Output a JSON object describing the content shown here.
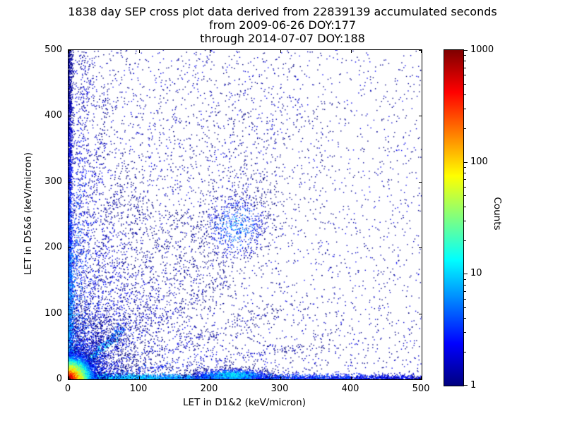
{
  "figure": {
    "background": "#ffffff",
    "axis_color": "#000000"
  },
  "chart_data": {
    "type": "scatter",
    "title_lines": [
      "1838 day SEP cross plot data derived from 22839139 accumulated seconds",
      "from 2009-06-26 DOY:177",
      "through 2014-07-07 DOY:188"
    ],
    "xlabel": "LET in D1&2 (keV/micron)",
    "ylabel": "LET in D5&6 (keV/micron)",
    "xlim": [
      0,
      500
    ],
    "ylim": [
      0,
      500
    ],
    "xticks": [
      0,
      100,
      200,
      300,
      400,
      500
    ],
    "yticks": [
      0,
      100,
      200,
      300,
      400,
      500
    ],
    "grid": false,
    "legend": "none",
    "point_base_color": "#00008f",
    "colorbar": {
      "label": "Counts",
      "scale": "log",
      "min": 1,
      "max": 1000,
      "ticks": [
        1,
        10,
        100,
        1000
      ],
      "colormap": "jet",
      "stops": [
        [
          0.0,
          "#00007f"
        ],
        [
          0.125,
          "#0000ff"
        ],
        [
          0.375,
          "#00ffff"
        ],
        [
          0.625,
          "#ffff00"
        ],
        [
          0.875,
          "#ff0000"
        ],
        [
          1.0,
          "#7f0000"
        ]
      ]
    },
    "seed": 1838,
    "clusters": [
      {
        "name": "background-sparse",
        "kind": "bg",
        "n": 1500,
        "xmax": 500,
        "ymax": 500,
        "xpow": 1.0,
        "ypow": 1.0,
        "peak": 1
      },
      {
        "name": "background-left-weighted",
        "kind": "bg",
        "n": 3400,
        "xmax": 500,
        "ymax": 500,
        "xpow": 2.3,
        "ypow": 1.5,
        "peak": 1.4
      },
      {
        "name": "upper-mid-diffuse-1",
        "kind": "blob",
        "n": 170,
        "cx": 135,
        "cy": 330,
        "sx": 48,
        "sy": 75,
        "peak": 1.6
      },
      {
        "name": "upper-mid-diffuse-2",
        "kind": "blob",
        "n": 170,
        "cx": 290,
        "cy": 415,
        "sx": 45,
        "sy": 60,
        "peak": 1.6
      },
      {
        "name": "mid-diffuse",
        "kind": "blob",
        "n": 160,
        "cx": 225,
        "cy": 330,
        "sx": 55,
        "sy": 50,
        "peak": 1.6
      },
      {
        "name": "left-band",
        "kind": "band-left",
        "n": 2200,
        "sigma": 3,
        "ymax": 500,
        "ypow": 1.2,
        "peak": 10
      },
      {
        "name": "bottom-band",
        "kind": "band-bottom",
        "n": 3800,
        "sigma": 3.5,
        "xmax": 500,
        "xpow": 1.7,
        "peak": 12
      },
      {
        "name": "bottom-bump",
        "kind": "blob",
        "n": 1400,
        "cx": 232,
        "cy": 6,
        "sx": 27,
        "sy": 5,
        "peak": 10
      },
      {
        "name": "streak-87",
        "kind": "streak",
        "n": 650,
        "angle": 87,
        "len": 500,
        "sigma": 5,
        "peak": 8,
        "spow": 1.6
      },
      {
        "name": "streak-83",
        "kind": "streak",
        "n": 520,
        "angle": 83,
        "len": 430,
        "sigma": 7,
        "peak": 6,
        "spow": 1.5
      },
      {
        "name": "streak-76",
        "kind": "streak",
        "n": 450,
        "angle": 76,
        "len": 340,
        "sigma": 8,
        "peak": 5,
        "spow": 1.4
      },
      {
        "name": "streak-68",
        "kind": "streak",
        "n": 380,
        "angle": 68,
        "len": 300,
        "sigma": 9,
        "peak": 5,
        "spow": 1.4
      },
      {
        "name": "streak-58",
        "kind": "streak",
        "n": 350,
        "angle": 58,
        "len": 300,
        "sigma": 10,
        "peak": 4,
        "spow": 1.4
      },
      {
        "name": "diagonal-bright",
        "kind": "streak",
        "n": 520,
        "angle": 45,
        "len": 110,
        "sigma": 3.5,
        "peak": 30,
        "spow": 1.2
      },
      {
        "name": "diagonal-diffuse",
        "kind": "streak",
        "n": 700,
        "angle": 47,
        "len": 420,
        "sigma": 24,
        "peak": 3,
        "spow": 1.3
      },
      {
        "name": "streak-34",
        "kind": "streak",
        "n": 300,
        "angle": 34,
        "len": 280,
        "sigma": 9,
        "peak": 4,
        "spow": 1.4
      },
      {
        "name": "streak-19",
        "kind": "streak",
        "n": 280,
        "angle": 19,
        "len": 320,
        "sigma": 8,
        "peak": 4,
        "spow": 1.4
      },
      {
        "name": "streak-8",
        "kind": "streak",
        "n": 300,
        "angle": 8,
        "len": 380,
        "sigma": 6,
        "peak": 5,
        "spow": 1.4
      },
      {
        "name": "center-blob",
        "kind": "blob",
        "n": 650,
        "cx": 237,
        "cy": 232,
        "sx": 26,
        "sy": 30,
        "peak": 5
      },
      {
        "name": "origin-halo",
        "kind": "radial",
        "n": 2600,
        "cx": 0,
        "cy": 0,
        "scale": 60,
        "cdecay": 28,
        "peak": 15
      },
      {
        "name": "origin-core",
        "kind": "radial",
        "n": 9000,
        "cx": 0,
        "cy": 0,
        "scale": 11,
        "cdecay": 6.5,
        "peak": 1000
      }
    ]
  }
}
